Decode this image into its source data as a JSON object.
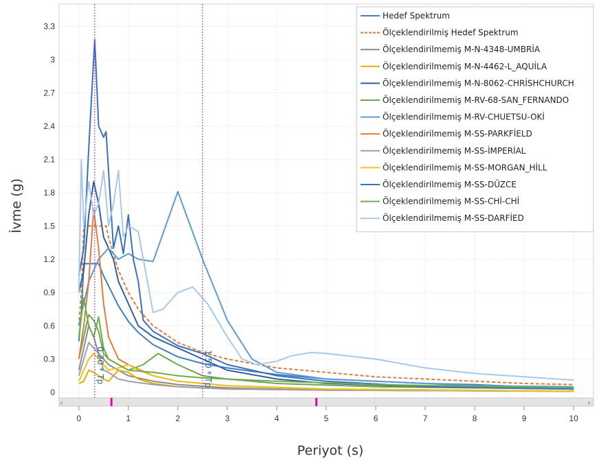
{
  "chart_data": {
    "type": "line",
    "xlabel": "Periyot (s)",
    "ylabel": "İvme (g)",
    "xlim": [
      -0.4,
      10.4
    ],
    "ylim": [
      -0.05,
      3.5
    ],
    "xticks": [
      0,
      1,
      2,
      3,
      4,
      5,
      6,
      7,
      8,
      9,
      10
    ],
    "yticks": [
      0,
      0.3,
      0.6,
      0.9,
      1.2,
      1.5,
      1.8,
      2.1,
      2.4,
      2.7,
      3,
      3.3
    ],
    "ytick_labels": [
      "0",
      "0.3",
      "0.6",
      "0.9",
      "1.2",
      "1.5",
      "1.8",
      "2.1",
      "2.4",
      "2.7",
      "3",
      "3.3"
    ],
    "grid": true,
    "legend_position": "top-right",
    "vertical_lines": [
      {
        "x": 0.32,
        "label": "0.20 * Tp",
        "color": "#b040c0"
      },
      {
        "x": 2.5,
        "label": "1.50 * Tp",
        "color": "#b040c0"
      }
    ],
    "series": [
      {
        "name": "Hedef Spektrum",
        "color": "#3f7fbf",
        "dashed": false,
        "points": [
          [
            0,
            0.46
          ],
          [
            0.05,
            0.7
          ],
          [
            0.1,
            1.16
          ],
          [
            0.2,
            1.16
          ],
          [
            0.3,
            1.16
          ],
          [
            0.4,
            1.16
          ],
          [
            0.5,
            1.05
          ],
          [
            0.6,
            0.96
          ],
          [
            0.8,
            0.78
          ],
          [
            1,
            0.64
          ],
          [
            1.2,
            0.54
          ],
          [
            1.5,
            0.43
          ],
          [
            2,
            0.32
          ],
          [
            2.5,
            0.26
          ],
          [
            3,
            0.22
          ],
          [
            3.5,
            0.19
          ],
          [
            4,
            0.16
          ],
          [
            5,
            0.12
          ],
          [
            6,
            0.1
          ],
          [
            7,
            0.08
          ],
          [
            8,
            0.07
          ],
          [
            9,
            0.05
          ],
          [
            10,
            0.04
          ]
        ]
      },
      {
        "name": "Ölçeklendirilmiş Hedef Spektrum",
        "color": "#e07b39",
        "dashed": true,
        "points": [
          [
            0,
            0.6
          ],
          [
            0.05,
            0.9
          ],
          [
            0.1,
            1.5
          ],
          [
            0.3,
            1.5
          ],
          [
            0.55,
            1.5
          ],
          [
            0.6,
            1.4
          ],
          [
            0.8,
            1.1
          ],
          [
            1,
            0.9
          ],
          [
            1.2,
            0.75
          ],
          [
            1.5,
            0.6
          ],
          [
            2,
            0.45
          ],
          [
            2.5,
            0.36
          ],
          [
            3,
            0.3
          ],
          [
            3.5,
            0.26
          ],
          [
            4,
            0.22
          ],
          [
            5,
            0.18
          ],
          [
            6,
            0.14
          ],
          [
            7,
            0.12
          ],
          [
            8,
            0.1
          ],
          [
            9,
            0.08
          ],
          [
            10,
            0.07
          ]
        ]
      },
      {
        "name": "Ölçeklendirilmemiş M-N-4348-UMBRİA",
        "color": "#8a8a8a",
        "dashed": false,
        "points": [
          [
            0,
            0.2
          ],
          [
            0.1,
            0.4
          ],
          [
            0.2,
            0.6
          ],
          [
            0.3,
            0.5
          ],
          [
            0.4,
            0.35
          ],
          [
            0.5,
            0.3
          ],
          [
            0.6,
            0.25
          ],
          [
            0.8,
            0.2
          ],
          [
            1,
            0.15
          ],
          [
            1.5,
            0.1
          ],
          [
            2,
            0.07
          ],
          [
            3,
            0.04
          ],
          [
            5,
            0.02
          ],
          [
            10,
            0.01
          ]
        ]
      },
      {
        "name": "Ölçeklendirilmemiş M-N-4462-L_AQUİLA",
        "color": "#e0b000",
        "dashed": false,
        "points": [
          [
            0,
            0.08
          ],
          [
            0.1,
            0.1
          ],
          [
            0.2,
            0.2
          ],
          [
            0.3,
            0.18
          ],
          [
            0.4,
            0.15
          ],
          [
            0.5,
            0.12
          ],
          [
            0.6,
            0.1
          ],
          [
            0.8,
            0.2
          ],
          [
            1,
            0.18
          ],
          [
            1.2,
            0.12
          ],
          [
            1.5,
            0.08
          ],
          [
            2,
            0.05
          ],
          [
            3,
            0.03
          ],
          [
            5,
            0.02
          ],
          [
            10,
            0.01
          ]
        ]
      },
      {
        "name": "Ölçeklendirilmemiş M-N-8062-CHRİSHCHURCH",
        "color": "#2e5f9e",
        "dashed": false,
        "points": [
          [
            0,
            0.9
          ],
          [
            0.1,
            1.1
          ],
          [
            0.2,
            1.6
          ],
          [
            0.3,
            1.9
          ],
          [
            0.4,
            1.7
          ],
          [
            0.5,
            1.4
          ],
          [
            0.6,
            1.3
          ],
          [
            0.7,
            1.2
          ],
          [
            0.8,
            1.0
          ],
          [
            1,
            0.8
          ],
          [
            1.2,
            0.6
          ],
          [
            1.5,
            0.5
          ],
          [
            2,
            0.4
          ],
          [
            2.5,
            0.3
          ],
          [
            3,
            0.2
          ],
          [
            4,
            0.12
          ],
          [
            5,
            0.08
          ],
          [
            7,
            0.05
          ],
          [
            10,
            0.03
          ]
        ]
      },
      {
        "name": "Ölçeklendirilmemiş M-RV-68-SAN_FERNANDO",
        "color": "#6aa84f",
        "dashed": false,
        "points": [
          [
            0,
            0.3
          ],
          [
            0.1,
            0.5
          ],
          [
            0.2,
            0.7
          ],
          [
            0.3,
            0.65
          ],
          [
            0.4,
            0.55
          ],
          [
            0.5,
            0.35
          ],
          [
            0.6,
            0.3
          ],
          [
            0.8,
            0.25
          ],
          [
            1,
            0.2
          ],
          [
            1.3,
            0.25
          ],
          [
            1.6,
            0.35
          ],
          [
            2,
            0.25
          ],
          [
            2.5,
            0.15
          ],
          [
            3,
            0.12
          ],
          [
            4,
            0.08
          ],
          [
            6,
            0.05
          ],
          [
            10,
            0.03
          ]
        ]
      },
      {
        "name": "Ölçeklendirilmemiş M-RV-CHUETSU-OKİ",
        "color": "#5b9bd5",
        "dashed": false,
        "points": [
          [
            0,
            0.6
          ],
          [
            0.2,
            1.0
          ],
          [
            0.4,
            1.2
          ],
          [
            0.6,
            1.3
          ],
          [
            0.8,
            1.2
          ],
          [
            1,
            1.25
          ],
          [
            1.2,
            1.2
          ],
          [
            1.5,
            1.18
          ],
          [
            2,
            1.81
          ],
          [
            2.5,
            1.2
          ],
          [
            3,
            0.65
          ],
          [
            3.5,
            0.3
          ],
          [
            4,
            0.18
          ],
          [
            5,
            0.12
          ],
          [
            6,
            0.1
          ],
          [
            7,
            0.08
          ],
          [
            8,
            0.06
          ],
          [
            10,
            0.05
          ]
        ]
      },
      {
        "name": "Ölçeklendirilmemiş M-SS-PARKFİELD",
        "color": "#e07b39",
        "dashed": false,
        "points": [
          [
            0,
            0.3
          ],
          [
            0.1,
            0.6
          ],
          [
            0.2,
            1.0
          ],
          [
            0.3,
            1.65
          ],
          [
            0.4,
            1.3
          ],
          [
            0.5,
            0.8
          ],
          [
            0.6,
            0.5
          ],
          [
            0.7,
            0.4
          ],
          [
            0.8,
            0.3
          ],
          [
            1,
            0.25
          ],
          [
            1.5,
            0.15
          ],
          [
            2,
            0.1
          ],
          [
            3,
            0.06
          ],
          [
            5,
            0.03
          ],
          [
            10,
            0.01
          ]
        ]
      },
      {
        "name": "Ölçeklendirilmemiş M-SS-İMPERİAL",
        "color": "#a0a0a0",
        "dashed": false,
        "points": [
          [
            0,
            0.15
          ],
          [
            0.1,
            0.3
          ],
          [
            0.2,
            0.45
          ],
          [
            0.3,
            0.4
          ],
          [
            0.4,
            0.35
          ],
          [
            0.5,
            0.2
          ],
          [
            0.6,
            0.18
          ],
          [
            0.8,
            0.12
          ],
          [
            1,
            0.1
          ],
          [
            1.5,
            0.07
          ],
          [
            2,
            0.05
          ],
          [
            3,
            0.03
          ],
          [
            5,
            0.02
          ],
          [
            10,
            0.01
          ]
        ]
      },
      {
        "name": "Ölçeklendirilmemiş M-SS-MORGAN_HİLL",
        "color": "#f0c020",
        "dashed": false,
        "points": [
          [
            0,
            0.1
          ],
          [
            0.1,
            0.2
          ],
          [
            0.2,
            0.3
          ],
          [
            0.3,
            0.35
          ],
          [
            0.4,
            0.3
          ],
          [
            0.5,
            0.25
          ],
          [
            0.6,
            0.2
          ],
          [
            0.8,
            0.22
          ],
          [
            1,
            0.25
          ],
          [
            1.2,
            0.2
          ],
          [
            1.5,
            0.15
          ],
          [
            2,
            0.1
          ],
          [
            3,
            0.06
          ],
          [
            5,
            0.03
          ],
          [
            10,
            0.01
          ]
        ]
      },
      {
        "name": "Ölçeklendirilmemiş M-SS-DÜZCE",
        "color": "#3a6fc0",
        "dashed": false,
        "points": [
          [
            0,
            1.05
          ],
          [
            0.1,
            1.3
          ],
          [
            0.2,
            2.2
          ],
          [
            0.32,
            3.18
          ],
          [
            0.4,
            2.4
          ],
          [
            0.5,
            2.3
          ],
          [
            0.55,
            2.35
          ],
          [
            0.6,
            2.0
          ],
          [
            0.7,
            1.3
          ],
          [
            0.8,
            1.5
          ],
          [
            0.9,
            1.25
          ],
          [
            1,
            1.6
          ],
          [
            1.1,
            1.2
          ],
          [
            1.2,
            1.0
          ],
          [
            1.3,
            0.65
          ],
          [
            1.5,
            0.55
          ],
          [
            2,
            0.42
          ],
          [
            2.5,
            0.35
          ],
          [
            3,
            0.25
          ],
          [
            4,
            0.15
          ],
          [
            5,
            0.1
          ],
          [
            7,
            0.05
          ],
          [
            10,
            0.03
          ]
        ]
      },
      {
        "name": "Ölçeklendirilmemiş M-SS-CHİ-CHİ",
        "color": "#70ad47",
        "dashed": false,
        "points": [
          [
            0,
            0.5
          ],
          [
            0.1,
            0.85
          ],
          [
            0.2,
            0.6
          ],
          [
            0.3,
            0.5
          ],
          [
            0.4,
            0.68
          ],
          [
            0.5,
            0.4
          ],
          [
            0.6,
            0.3
          ],
          [
            0.8,
            0.25
          ],
          [
            1,
            0.2
          ],
          [
            1.5,
            0.18
          ],
          [
            2,
            0.15
          ],
          [
            2.5,
            0.13
          ],
          [
            3,
            0.12
          ],
          [
            4,
            0.1
          ],
          [
            6,
            0.07
          ],
          [
            10,
            0.04
          ]
        ]
      },
      {
        "name": "Ölçeklendirilmemiş M-SS-DARFİED",
        "color": "#a8c8e8",
        "dashed": false,
        "points": [
          [
            0,
            0.9
          ],
          [
            0.05,
            2.1
          ],
          [
            0.1,
            1.5
          ],
          [
            0.2,
            1.9
          ],
          [
            0.3,
            1.6
          ],
          [
            0.4,
            1.7
          ],
          [
            0.5,
            2.0
          ],
          [
            0.6,
            1.5
          ],
          [
            0.7,
            1.7
          ],
          [
            0.8,
            2.0
          ],
          [
            0.9,
            1.4
          ],
          [
            1,
            1.5
          ],
          [
            1.2,
            1.45
          ],
          [
            1.5,
            0.72
          ],
          [
            1.7,
            0.75
          ],
          [
            2,
            0.9
          ],
          [
            2.3,
            0.95
          ],
          [
            2.6,
            0.8
          ],
          [
            3,
            0.5
          ],
          [
            3.3,
            0.3
          ],
          [
            3.6,
            0.25
          ],
          [
            4,
            0.28
          ],
          [
            4.3,
            0.33
          ],
          [
            4.7,
            0.36
          ],
          [
            5,
            0.35
          ],
          [
            6,
            0.3
          ],
          [
            7,
            0.22
          ],
          [
            8,
            0.17
          ],
          [
            9,
            0.14
          ],
          [
            10,
            0.11
          ]
        ]
      }
    ]
  }
}
